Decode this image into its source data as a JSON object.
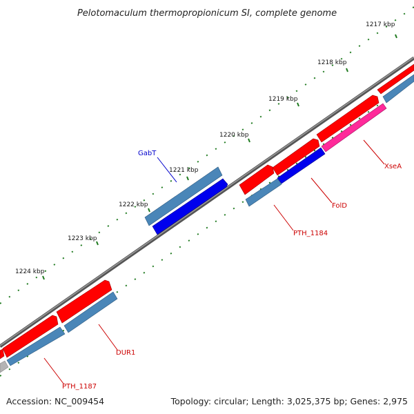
{
  "title": "Pelotomaculum thermopropionicum SI, complete genome",
  "accession": "Accession: NC_009454",
  "topology": "Topology: circular; Length: 3,025,375 bp; Genes: 2,975",
  "scale_labels": [
    "1217 kbp",
    "1218 kbp",
    "1219 kbp",
    "1220 kbp",
    "1221 kbp",
    "1222 kbp",
    "1223 kbp",
    "1224 kbp"
  ],
  "gene_labels": [
    {
      "name": "GabT",
      "color": "#0000cc"
    },
    {
      "name": "XseA",
      "color": "#cc0000"
    },
    {
      "name": "FolD",
      "color": "#cc0000"
    },
    {
      "name": "PTH_1184",
      "color": "#cc0000"
    },
    {
      "name": "DUR1",
      "color": "#cc0000"
    },
    {
      "name": "PTH_1187",
      "color": "#cc0000"
    }
  ],
  "colors": {
    "backbone": "#7a7a7a",
    "tick": "#1f7a1f",
    "red_gene": "#ff0000",
    "steel_gene": "#4682b4",
    "blue_gene": "#0000ee",
    "pink_gene": "#ff1493",
    "grey_gene": "#b4b4b4"
  }
}
